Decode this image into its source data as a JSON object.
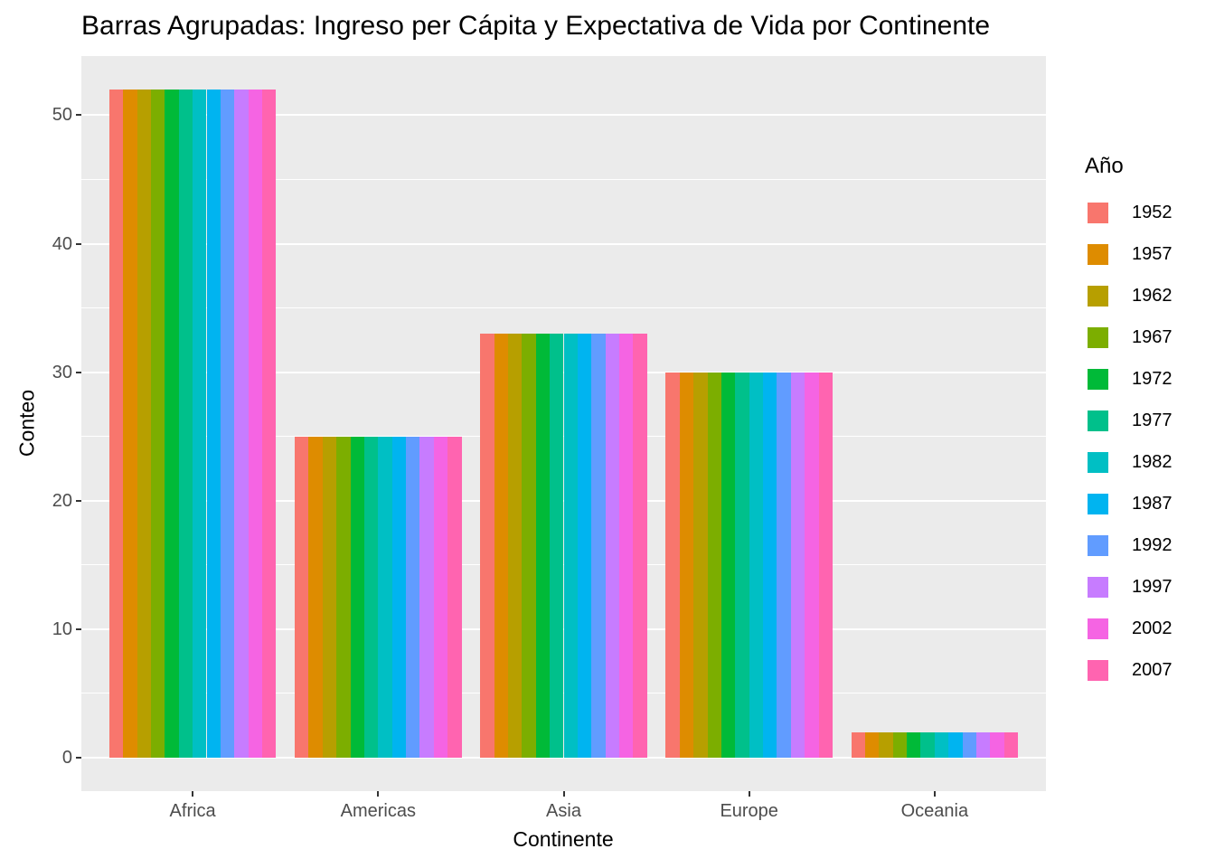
{
  "chart": {
    "title": "Barras Agrupadas: Ingreso per Cápita y Expectativa de Vida por Continente",
    "xlabel": "Continente",
    "ylabel": "Conteo",
    "legend_title": "Año"
  },
  "chart_data": {
    "type": "bar",
    "grouped": true,
    "title": "Barras Agrupadas: Ingreso per Cápita y Expectativa de Vida por Continente",
    "xlabel": "Continente",
    "ylabel": "Conteo",
    "legend_title": "Año",
    "legend_position": "right",
    "grid": true,
    "panel_background": "#EBEBEB",
    "gridline_color": "#FFFFFF",
    "tick_label_color": "#4D4D4D",
    "categories": [
      "Africa",
      "Americas",
      "Asia",
      "Europe",
      "Oceania"
    ],
    "series": [
      {
        "name": "1952",
        "color": "#F8766D",
        "values": [
          52,
          25,
          33,
          30,
          2
        ]
      },
      {
        "name": "1957",
        "color": "#DE8C00",
        "values": [
          52,
          25,
          33,
          30,
          2
        ]
      },
      {
        "name": "1962",
        "color": "#B79F00",
        "values": [
          52,
          25,
          33,
          30,
          2
        ]
      },
      {
        "name": "1967",
        "color": "#7CAE00",
        "values": [
          52,
          25,
          33,
          30,
          2
        ]
      },
      {
        "name": "1972",
        "color": "#00BA38",
        "values": [
          52,
          25,
          33,
          30,
          2
        ]
      },
      {
        "name": "1977",
        "color": "#00C08B",
        "values": [
          52,
          25,
          33,
          30,
          2
        ]
      },
      {
        "name": "1982",
        "color": "#00BFC4",
        "values": [
          52,
          25,
          33,
          30,
          2
        ]
      },
      {
        "name": "1987",
        "color": "#00B4F0",
        "values": [
          52,
          25,
          33,
          30,
          2
        ]
      },
      {
        "name": "1992",
        "color": "#619CFF",
        "values": [
          52,
          25,
          33,
          30,
          2
        ]
      },
      {
        "name": "1997",
        "color": "#C77CFF",
        "values": [
          52,
          25,
          33,
          30,
          2
        ]
      },
      {
        "name": "2002",
        "color": "#F564E3",
        "values": [
          52,
          25,
          33,
          30,
          2
        ]
      },
      {
        "name": "2007",
        "color": "#FF64B0",
        "values": [
          52,
          25,
          33,
          30,
          2
        ]
      }
    ],
    "ylim": [
      0,
      52
    ],
    "y_major_ticks": [
      0,
      10,
      20,
      30,
      40,
      50
    ],
    "y_minor_ticks": [
      5,
      15,
      25,
      35,
      45
    ]
  }
}
